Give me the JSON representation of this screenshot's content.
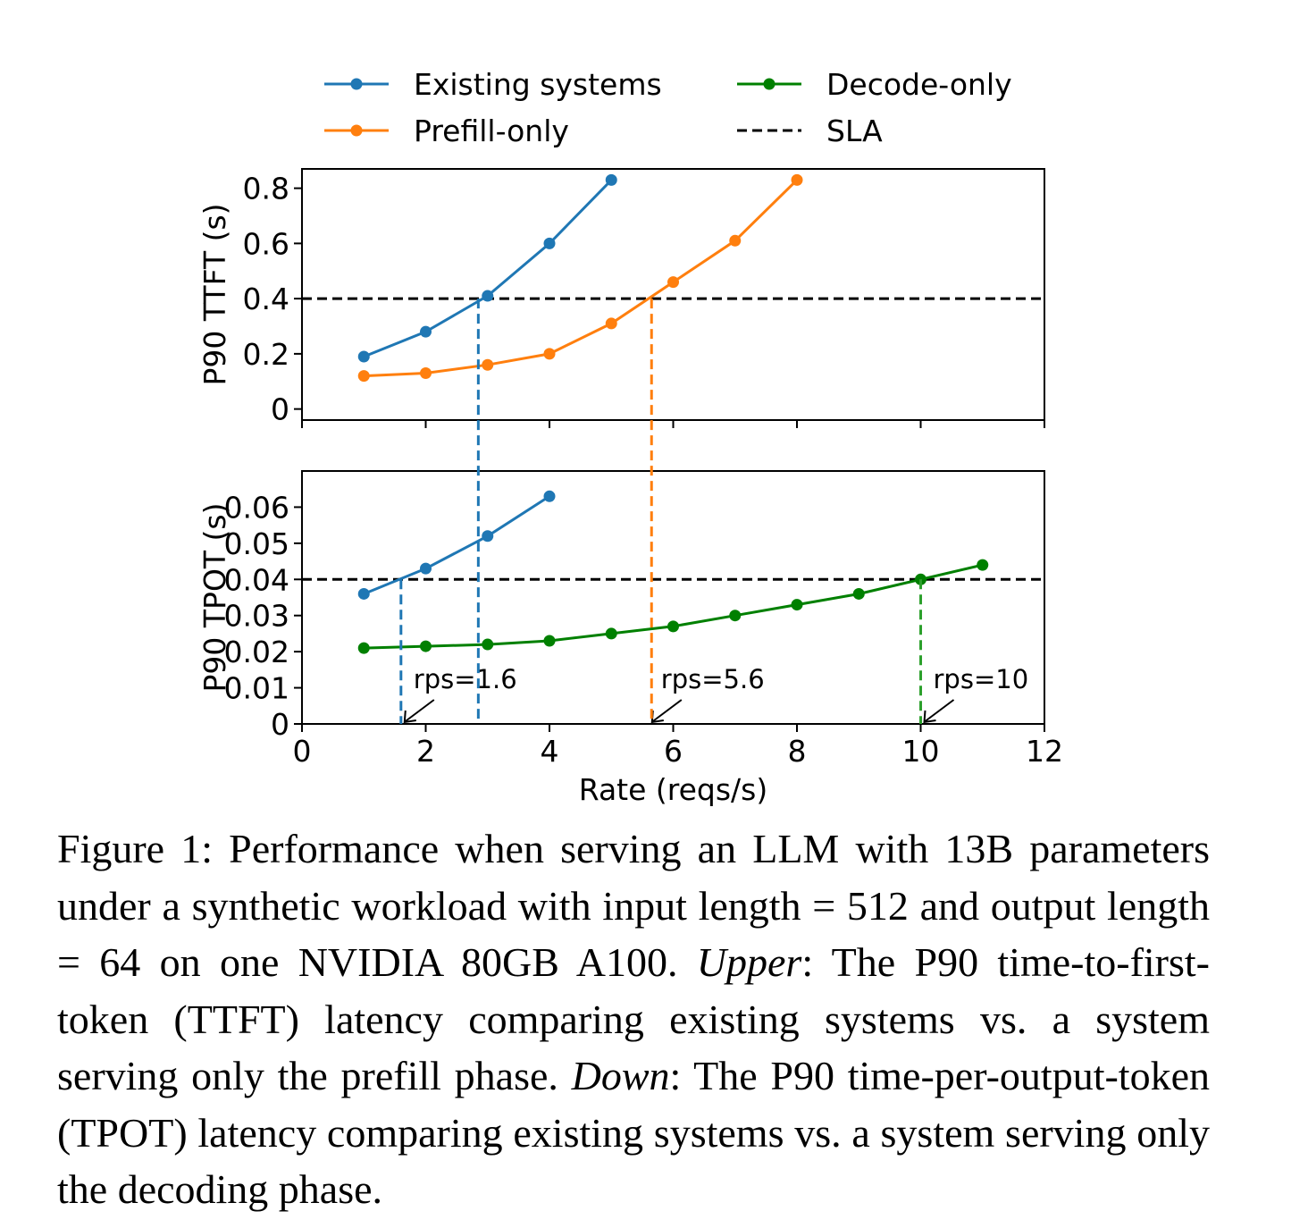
{
  "chart_data": [
    {
      "type": "line",
      "ylabel": "P90 TTFT (s)",
      "xlabel": "",
      "xlim": [
        0,
        12
      ],
      "ylim": [
        -0.04,
        0.87
      ],
      "yticks": [
        0,
        0.2,
        0.4,
        0.6,
        0.8
      ],
      "ytick_labels": [
        "0",
        "0.2",
        "0.4",
        "0.6",
        "0.8"
      ],
      "xticks": [
        0,
        2,
        4,
        6,
        8,
        10,
        12
      ],
      "xtick_labels_shown": false,
      "sla": 0.4,
      "series": [
        {
          "name": "Existing systems",
          "color": "#1f77b4",
          "x": [
            1,
            2,
            3,
            4,
            5
          ],
          "y": [
            0.19,
            0.28,
            0.41,
            0.6,
            0.83
          ]
        },
        {
          "name": "Prefill-only",
          "color": "#ff7f0e",
          "x": [
            1,
            2,
            3,
            4,
            5,
            6,
            7,
            8
          ],
          "y": [
            0.12,
            0.13,
            0.16,
            0.2,
            0.31,
            0.46,
            0.61,
            0.83
          ]
        }
      ],
      "vlines": [
        {
          "x": 2.85,
          "color": "#1f77b4"
        },
        {
          "x": 5.65,
          "color": "#ff7f0e"
        }
      ]
    },
    {
      "type": "line",
      "ylabel": "P90 TPOT (s)",
      "xlabel": "Rate (reqs/s)",
      "xlim": [
        0,
        12
      ],
      "ylim": [
        0,
        0.07
      ],
      "yticks": [
        0,
        0.01,
        0.02,
        0.03,
        0.04,
        0.05,
        0.06
      ],
      "ytick_labels": [
        "0",
        "0.01",
        "0.02",
        "0.03",
        "0.04",
        "0.05",
        "0.06"
      ],
      "xticks": [
        0,
        2,
        4,
        6,
        8,
        10,
        12
      ],
      "xtick_labels": [
        "0",
        "2",
        "4",
        "6",
        "8",
        "10",
        "12"
      ],
      "sla": 0.04,
      "series": [
        {
          "name": "Existing systems",
          "color": "#1f77b4",
          "x": [
            1,
            2,
            3,
            4
          ],
          "y": [
            0.036,
            0.043,
            0.052,
            0.063
          ]
        },
        {
          "name": "Decode-only",
          "color": "#008000",
          "x": [
            1,
            2,
            3,
            4,
            5,
            6,
            7,
            8,
            9,
            10,
            11
          ],
          "y": [
            0.021,
            0.0215,
            0.022,
            0.023,
            0.025,
            0.027,
            0.03,
            0.033,
            0.036,
            0.04,
            0.044
          ]
        }
      ],
      "vlines": [
        {
          "x": 1.6,
          "color": "#1f77b4",
          "top": 0.04
        },
        {
          "x": 2.85,
          "color": "#1f77b4",
          "top": "upper"
        },
        {
          "x": 5.65,
          "color": "#ff7f0e",
          "top": "upper"
        },
        {
          "x": 10,
          "color": "#2ca02c",
          "top": 0.04
        }
      ],
      "annotations": [
        {
          "text": "rps=1.6",
          "x": 1.6
        },
        {
          "text": "rps=5.6",
          "x": 5.6
        },
        {
          "text": "rps=10",
          "x": 10
        }
      ]
    }
  ],
  "legend": {
    "placement": "top",
    "entries": [
      {
        "label": "Existing systems",
        "color": "#1f77b4",
        "style": "line-marker"
      },
      {
        "label": "Prefill-only",
        "color": "#ff7f0e",
        "style": "line-marker"
      },
      {
        "label": "Decode-only",
        "color": "#008000",
        "style": "line-marker"
      },
      {
        "label": "SLA",
        "color": "#000000",
        "style": "dashed"
      }
    ]
  },
  "caption": {
    "lead": "Figure 1: Performance when serving an LLM with 13B parameters under a synthetic workload with input length = 512 and output length = 64 on one NVIDIA 80GB A100. ",
    "upper_label": "Upper",
    "upper_text": ": The P90 time-to-first-token (TTFT) latency comparing existing systems vs. a system serving only the prefill phase. ",
    "down_label": "Down",
    "down_text": ": The P90 time-per-output-token (TPOT) latency comparing existing systems vs. a system serving only the decoding phase."
  }
}
